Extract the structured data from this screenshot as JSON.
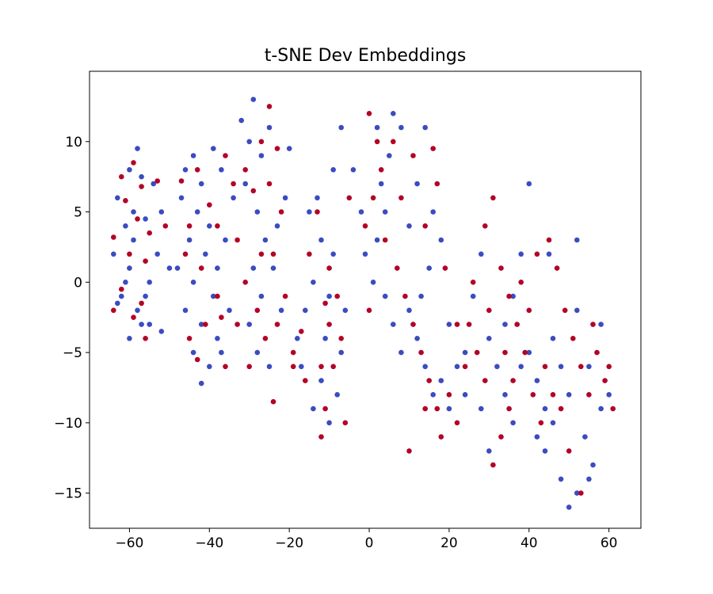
{
  "chart_data": {
    "type": "scatter",
    "title": "t-SNE Dev Embeddings",
    "xlabel": "",
    "ylabel": "",
    "xlim": [
      -70,
      68
    ],
    "ylim": [
      -17.5,
      15
    ],
    "xticks": [
      -60,
      -40,
      -20,
      0,
      20,
      40,
      60
    ],
    "yticks": [
      -15,
      -10,
      -5,
      0,
      5,
      10
    ],
    "xtick_labels": [
      "−60",
      "−40",
      "−20",
      "0",
      "20",
      "40",
      "60"
    ],
    "ytick_labels": [
      "−15",
      "−10",
      "−5",
      "0",
      "5",
      "10"
    ],
    "grid": false,
    "colors": {
      "class_a": "#3b4cc0",
      "class_b": "#b40426"
    },
    "series": [
      {
        "color": "#3b4cc0",
        "points": [
          [
            -58,
            9.5
          ],
          [
            -60,
            8
          ],
          [
            -57,
            7.5
          ],
          [
            -63,
            6
          ],
          [
            -59,
            5
          ],
          [
            -61,
            4
          ],
          [
            -56,
            4.5
          ],
          [
            -64,
            2
          ],
          [
            -60,
            1
          ],
          [
            -62,
            -1
          ],
          [
            -58,
            -2
          ],
          [
            -55,
            0
          ],
          [
            -53,
            2
          ],
          [
            -57,
            -3
          ],
          [
            -60,
            -4
          ],
          [
            -52,
            5
          ],
          [
            -54,
            7
          ],
          [
            -63,
            -1.5
          ],
          [
            -61,
            0
          ],
          [
            -59,
            3
          ],
          [
            -50,
            1
          ],
          [
            -56,
            -1
          ],
          [
            -55,
            -3
          ],
          [
            -52,
            -3.5
          ],
          [
            -44,
            9
          ],
          [
            -46,
            8
          ],
          [
            -42,
            7
          ],
          [
            -39,
            9.5
          ],
          [
            -47,
            6
          ],
          [
            -43,
            5
          ],
          [
            -40,
            4
          ],
          [
            -45,
            3
          ],
          [
            -41,
            2
          ],
          [
            -48,
            1
          ],
          [
            -44,
            0
          ],
          [
            -39,
            -1
          ],
          [
            -46,
            -2
          ],
          [
            -42,
            -3
          ],
          [
            -38,
            -4
          ],
          [
            -44,
            -5
          ],
          [
            -40,
            -6
          ],
          [
            -42,
            -7.2
          ],
          [
            -37,
            -5
          ],
          [
            -35,
            -2
          ],
          [
            -38,
            1
          ],
          [
            -36,
            3
          ],
          [
            -34,
            6
          ],
          [
            -37,
            8
          ],
          [
            -32,
            11.5
          ],
          [
            -29,
            13
          ],
          [
            -30,
            10
          ],
          [
            -27,
            9
          ],
          [
            -31,
            7
          ],
          [
            -28,
            5
          ],
          [
            -26,
            3
          ],
          [
            -29,
            1
          ],
          [
            -27,
            -1
          ],
          [
            -30,
            -3
          ],
          [
            -28,
            -5
          ],
          [
            -25,
            -6
          ],
          [
            -22,
            -2
          ],
          [
            -24,
            1
          ],
          [
            -23,
            4
          ],
          [
            -21,
            6
          ],
          [
            -20,
            9.5
          ],
          [
            -25,
            11
          ],
          [
            -18,
            -4
          ],
          [
            -16,
            -2
          ],
          [
            -14,
            0
          ],
          [
            -12,
            3
          ],
          [
            -15,
            5
          ],
          [
            -13,
            6
          ],
          [
            -17,
            -6
          ],
          [
            -11,
            -4
          ],
          [
            -10,
            -1
          ],
          [
            -9,
            2
          ],
          [
            -12,
            -7
          ],
          [
            -14,
            -9
          ],
          [
            -10,
            -10
          ],
          [
            -8,
            -8
          ],
          [
            -7,
            -5
          ],
          [
            -6,
            -2
          ],
          [
            -9,
            8
          ],
          [
            -7,
            11
          ],
          [
            -4,
            8
          ],
          [
            -2,
            5
          ],
          [
            -1,
            2
          ],
          [
            1,
            0
          ],
          [
            2,
            3
          ],
          [
            4,
            5
          ],
          [
            3,
            7
          ],
          [
            5,
            9
          ],
          [
            2,
            11
          ],
          [
            6,
            12
          ],
          [
            8,
            11
          ],
          [
            4,
            -1
          ],
          [
            6,
            -3
          ],
          [
            8,
            -5
          ],
          [
            10,
            -2
          ],
          [
            12,
            -4
          ],
          [
            14,
            -6
          ],
          [
            16,
            -8
          ],
          [
            10,
            4
          ],
          [
            12,
            7
          ],
          [
            14,
            11
          ],
          [
            16,
            5
          ],
          [
            18,
            3
          ],
          [
            15,
            1
          ],
          [
            13,
            -1
          ],
          [
            20,
            -3
          ],
          [
            22,
            -6
          ],
          [
            24,
            -8
          ],
          [
            26,
            -1
          ],
          [
            28,
            2
          ],
          [
            30,
            -4
          ],
          [
            32,
            -6
          ],
          [
            34,
            -3
          ],
          [
            36,
            -1
          ],
          [
            38,
            2
          ],
          [
            40,
            -5
          ],
          [
            42,
            -7
          ],
          [
            44,
            -9
          ],
          [
            46,
            -4
          ],
          [
            48,
            -6
          ],
          [
            50,
            -8
          ],
          [
            52,
            -2
          ],
          [
            54,
            -11
          ],
          [
            56,
            -13
          ],
          [
            58,
            -9
          ],
          [
            40,
            7
          ],
          [
            45,
            2
          ],
          [
            42,
            -11
          ],
          [
            48,
            -14
          ],
          [
            50,
            -16
          ],
          [
            52,
            -15
          ],
          [
            55,
            -14
          ],
          [
            36,
            -10
          ],
          [
            30,
            -12
          ],
          [
            34,
            -8
          ],
          [
            38,
            -6
          ],
          [
            46,
            -10
          ],
          [
            55,
            -6
          ],
          [
            58,
            -3
          ],
          [
            60,
            -8
          ],
          [
            44,
            -12
          ],
          [
            52,
            3
          ],
          [
            28,
            -9
          ],
          [
            24,
            -5
          ],
          [
            20,
            -9
          ],
          [
            18,
            -7
          ]
        ]
      },
      {
        "color": "#b40426",
        "points": [
          [
            -59,
            8.5
          ],
          [
            -62,
            7.5
          ],
          [
            -57,
            6.8
          ],
          [
            -61,
            5.8
          ],
          [
            -58,
            4.5
          ],
          [
            -64,
            3.2
          ],
          [
            -60,
            2
          ],
          [
            -56,
            1.5
          ],
          [
            -62,
            -0.5
          ],
          [
            -57,
            -1.5
          ],
          [
            -64,
            -2
          ],
          [
            -55,
            3.5
          ],
          [
            -53,
            7.2
          ],
          [
            -51,
            4
          ],
          [
            -56,
            -4
          ],
          [
            -59,
            -2.5
          ],
          [
            -47,
            7.2
          ],
          [
            -43,
            8
          ],
          [
            -45,
            4
          ],
          [
            -40,
            5.5
          ],
          [
            -46,
            2
          ],
          [
            -42,
            1
          ],
          [
            -38,
            -1
          ],
          [
            -41,
            -3
          ],
          [
            -45,
            -4
          ],
          [
            -37,
            -2.5
          ],
          [
            -43,
            -5.5
          ],
          [
            -36,
            -6
          ],
          [
            -38,
            4
          ],
          [
            -34,
            7
          ],
          [
            -36,
            9
          ],
          [
            -31,
            8
          ],
          [
            -29,
            6.5
          ],
          [
            -33,
            3
          ],
          [
            -27,
            2
          ],
          [
            -31,
            0
          ],
          [
            -28,
            -2
          ],
          [
            -33,
            -3
          ],
          [
            -26,
            -4
          ],
          [
            -30,
            -6
          ],
          [
            -24,
            -8.5
          ],
          [
            -25,
            7
          ],
          [
            -23,
            9.5
          ],
          [
            -25,
            12.5
          ],
          [
            -27,
            10
          ],
          [
            -22,
            5
          ],
          [
            -24,
            2
          ],
          [
            -21,
            -1
          ],
          [
            -23,
            -3
          ],
          [
            -19,
            -5
          ],
          [
            -17,
            -3.5
          ],
          [
            -19,
            -6
          ],
          [
            -16,
            -7
          ],
          [
            -15,
            2
          ],
          [
            -13,
            5
          ],
          [
            -11,
            -1.5
          ],
          [
            -10,
            -3
          ],
          [
            -12,
            -6
          ],
          [
            -11,
            -9
          ],
          [
            -9,
            -6
          ],
          [
            -7,
            -4
          ],
          [
            -8,
            -1
          ],
          [
            -10,
            1
          ],
          [
            -6,
            -10
          ],
          [
            -12,
            -11
          ],
          [
            -5,
            6
          ],
          [
            -1,
            4
          ],
          [
            0,
            -2
          ],
          [
            2,
            10
          ],
          [
            0,
            12
          ],
          [
            3,
            8
          ],
          [
            6,
            10
          ],
          [
            1,
            6
          ],
          [
            4,
            3
          ],
          [
            7,
            1
          ],
          [
            9,
            -1
          ],
          [
            11,
            -3
          ],
          [
            13,
            -5
          ],
          [
            15,
            -7
          ],
          [
            17,
            -9
          ],
          [
            8,
            6
          ],
          [
            11,
            9
          ],
          [
            14,
            4
          ],
          [
            16,
            9.5
          ],
          [
            17,
            7
          ],
          [
            19,
            1
          ],
          [
            22,
            -3
          ],
          [
            24,
            -6
          ],
          [
            26,
            0
          ],
          [
            29,
            4
          ],
          [
            31,
            6
          ],
          [
            33,
            1
          ],
          [
            35,
            -1
          ],
          [
            37,
            -3
          ],
          [
            39,
            -5
          ],
          [
            41,
            -8
          ],
          [
            43,
            -10
          ],
          [
            45,
            3
          ],
          [
            47,
            1
          ],
          [
            49,
            -2
          ],
          [
            51,
            -4
          ],
          [
            53,
            -6
          ],
          [
            55,
            -8
          ],
          [
            57,
            -5
          ],
          [
            59,
            -7
          ],
          [
            61,
            -9
          ],
          [
            33,
            -11
          ],
          [
            31,
            -13
          ],
          [
            35,
            -9
          ],
          [
            29,
            -7
          ],
          [
            27,
            -5
          ],
          [
            25,
            -3
          ],
          [
            40,
            -2
          ],
          [
            38,
            0
          ],
          [
            42,
            2
          ],
          [
            36,
            -7
          ],
          [
            50,
            -12
          ],
          [
            53,
            -15
          ],
          [
            56,
            -3
          ],
          [
            60,
            -6
          ],
          [
            48,
            -9
          ],
          [
            44,
            -6
          ],
          [
            46,
            -8
          ],
          [
            30,
            -2
          ],
          [
            34,
            -5
          ],
          [
            20,
            -8
          ],
          [
            22,
            -10
          ],
          [
            18,
            -11
          ],
          [
            14,
            -9
          ],
          [
            10,
            -12
          ]
        ]
      }
    ]
  }
}
